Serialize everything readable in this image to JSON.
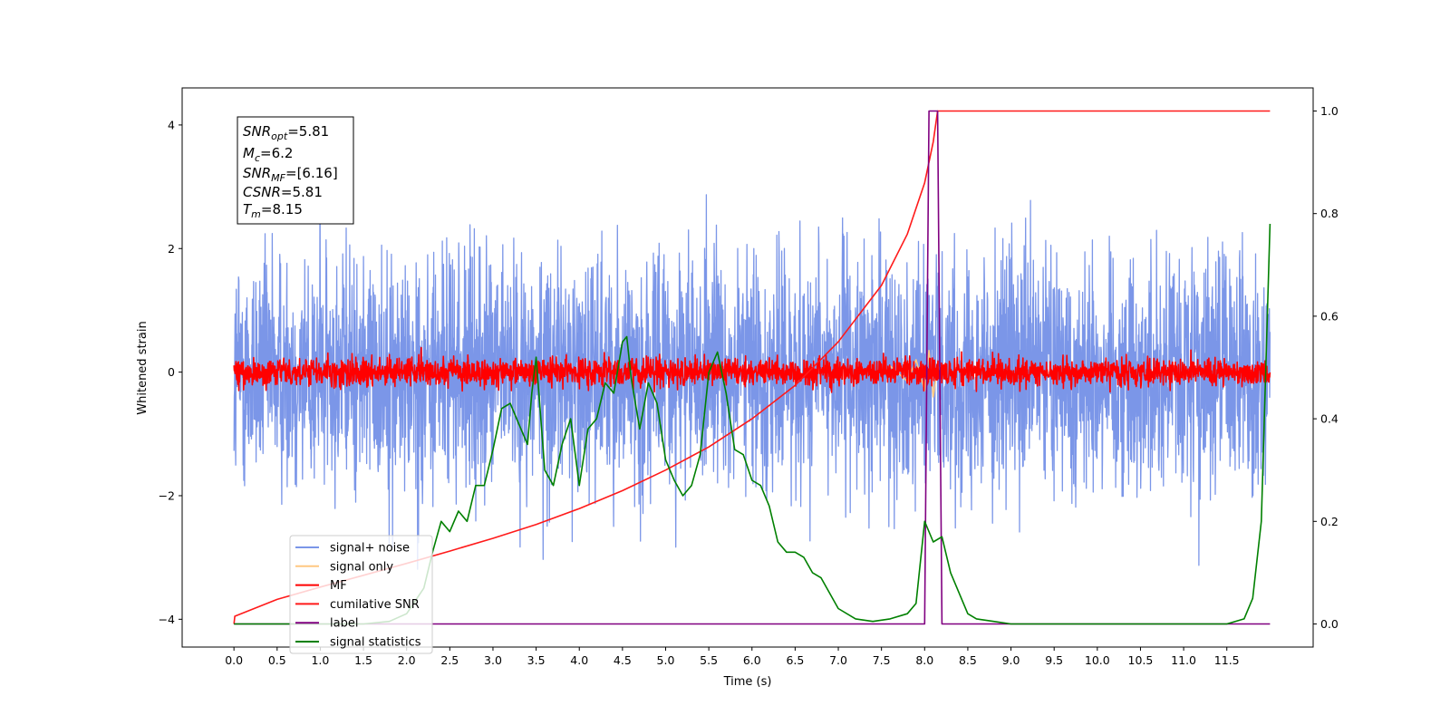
{
  "chart_data": {
    "type": "line",
    "xlabel": "Time (s)",
    "ylabel": "Whitened strain",
    "xlim": [
      -0.6,
      12.5
    ],
    "ylim": [
      -4.45,
      4.6
    ],
    "y2lim": [
      -0.045,
      1.045
    ],
    "x_ticks": [
      0.0,
      0.5,
      1.0,
      1.5,
      2.0,
      2.5,
      3.0,
      3.5,
      4.0,
      4.5,
      5.0,
      5.5,
      6.0,
      6.5,
      7.0,
      7.5,
      8.0,
      8.5,
      9.0,
      9.5,
      10.0,
      10.5,
      11.0,
      11.5
    ],
    "x_tick_labels": [
      "0.0",
      "0.5",
      "1.0",
      "1.5",
      "2.0",
      "2.5",
      "3.0",
      "3.5",
      "4.0",
      "4.5",
      "5.0",
      "5.5",
      "6.0",
      "6.5",
      "7.0",
      "7.5",
      "8.0",
      "8.5",
      "9.0",
      "9.5",
      "10.0",
      "10.5",
      "11.0",
      "11.5"
    ],
    "y_ticks": [
      -4,
      -2,
      0,
      2,
      4
    ],
    "y_tick_labels": [
      "−4",
      "−2",
      "0",
      "2",
      "4"
    ],
    "y2_ticks": [
      0.0,
      0.2,
      0.4,
      0.6,
      0.8,
      1.0
    ],
    "y2_tick_labels": [
      "0.0",
      "0.2",
      "0.4",
      "0.6",
      "0.8",
      "1.0"
    ],
    "annotation": [
      {
        "base": "SNR",
        "sub": "opt",
        "rest": "=5.81"
      },
      {
        "base": "M",
        "sub": "c",
        "rest": "=6.2"
      },
      {
        "base": "SNR",
        "sub": "MF",
        "rest": "=[6.16]"
      },
      {
        "base": "CSNR",
        "sub": "",
        "rest": "=5.81"
      },
      {
        "base": "T",
        "sub": "m",
        "rest": "=8.15"
      }
    ],
    "legend_position": "lower-left",
    "series": [
      {
        "name": "signal+ noise",
        "color": "#7b96e8",
        "axis": "left",
        "kind": "noise",
        "amplitude": 2.1
      },
      {
        "name": "signal only",
        "color": "#ffc882",
        "axis": "left",
        "kind": "chirp",
        "x": [
          7.6,
          7.8,
          7.9,
          8.0,
          8.05,
          8.1,
          8.15,
          8.2
        ],
        "y": [
          0.1,
          -0.15,
          0.2,
          -0.3,
          0.35,
          -0.4,
          0.1,
          0.0
        ]
      },
      {
        "name": "MF",
        "color": "#ff0000",
        "axis": "left",
        "kind": "noise",
        "amplitude": 0.25
      },
      {
        "name": "cumilative SNR",
        "color": "#ff1a1a",
        "axis": "right",
        "x": [
          0.0,
          0.01,
          0.5,
          1.0,
          1.5,
          2.0,
          2.5,
          3.0,
          3.5,
          4.0,
          4.5,
          5.0,
          5.5,
          6.0,
          6.5,
          7.0,
          7.5,
          7.8,
          8.0,
          8.1,
          8.15,
          12.0
        ],
        "y": [
          0.0,
          0.015,
          0.048,
          0.072,
          0.095,
          0.118,
          0.142,
          0.167,
          0.194,
          0.225,
          0.26,
          0.3,
          0.345,
          0.4,
          0.465,
          0.55,
          0.66,
          0.76,
          0.86,
          0.94,
          1.0,
          1.0
        ]
      },
      {
        "name": "label",
        "color": "#800080",
        "axis": "right",
        "x": [
          0.0,
          8.0,
          8.05,
          8.15,
          8.2,
          12.0
        ],
        "y": [
          0.0,
          0.0,
          1.0,
          1.0,
          0.0,
          0.0
        ]
      },
      {
        "name": "signal statistics",
        "color": "#008000",
        "axis": "right",
        "x": [
          0.0,
          0.5,
          1.0,
          1.5,
          1.8,
          2.0,
          2.2,
          2.3,
          2.4,
          2.5,
          2.6,
          2.7,
          2.8,
          2.9,
          3.0,
          3.1,
          3.2,
          3.3,
          3.4,
          3.45,
          3.5,
          3.6,
          3.7,
          3.8,
          3.9,
          4.0,
          4.1,
          4.2,
          4.3,
          4.4,
          4.5,
          4.55,
          4.6,
          4.7,
          4.8,
          4.9,
          5.0,
          5.1,
          5.2,
          5.3,
          5.4,
          5.5,
          5.6,
          5.7,
          5.8,
          5.9,
          6.0,
          6.1,
          6.2,
          6.3,
          6.4,
          6.5,
          6.6,
          6.7,
          6.8,
          7.0,
          7.2,
          7.4,
          7.6,
          7.8,
          7.9,
          8.0,
          8.1,
          8.2,
          8.3,
          8.4,
          8.5,
          8.6,
          8.8,
          9.0,
          9.5,
          10.0,
          10.5,
          11.0,
          11.5,
          11.7,
          11.8,
          11.9,
          12.0
        ],
        "y": [
          0.0,
          0.0,
          0.0,
          0.0,
          0.005,
          0.02,
          0.07,
          0.14,
          0.2,
          0.18,
          0.22,
          0.2,
          0.27,
          0.27,
          0.34,
          0.42,
          0.43,
          0.39,
          0.35,
          0.45,
          0.52,
          0.3,
          0.27,
          0.35,
          0.4,
          0.27,
          0.38,
          0.4,
          0.47,
          0.45,
          0.55,
          0.56,
          0.48,
          0.38,
          0.47,
          0.43,
          0.32,
          0.28,
          0.25,
          0.27,
          0.33,
          0.49,
          0.53,
          0.45,
          0.34,
          0.33,
          0.28,
          0.27,
          0.23,
          0.16,
          0.14,
          0.14,
          0.13,
          0.1,
          0.09,
          0.03,
          0.01,
          0.005,
          0.01,
          0.02,
          0.04,
          0.2,
          0.16,
          0.17,
          0.1,
          0.06,
          0.02,
          0.01,
          0.005,
          0.0,
          0.0,
          0.0,
          0.0,
          0.0,
          0.0,
          0.01,
          0.05,
          0.2,
          0.78
        ]
      }
    ]
  }
}
